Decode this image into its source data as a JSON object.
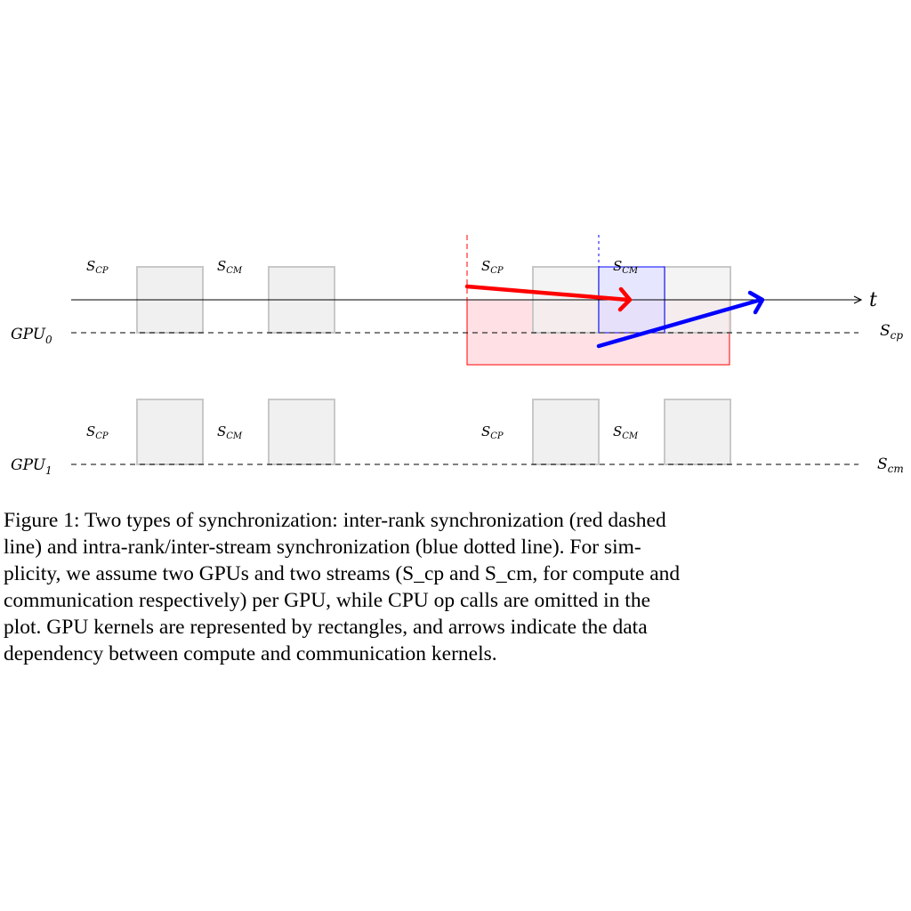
{
  "diagram": {
    "gpus": [
      {
        "base": "GPU",
        "sub": "0",
        "stream_right": {
          "base": "S",
          "sub": "cp"
        },
        "kernel_labels": [
          {
            "base": "S",
            "sub": "CP"
          },
          {
            "base": "S",
            "sub": "CM"
          },
          {
            "base": "S",
            "sub": "CP"
          },
          {
            "base": "S",
            "sub": "CM"
          }
        ]
      },
      {
        "base": "GPU",
        "sub": "1",
        "stream_right": {
          "base": "S",
          "sub": "cm"
        },
        "kernel_labels": [
          {
            "base": "S",
            "sub": "CP"
          },
          {
            "base": "S",
            "sub": "CM"
          },
          {
            "base": "S",
            "sub": "CP"
          },
          {
            "base": "S",
            "sub": "CM"
          }
        ]
      }
    ],
    "time_axis_label": "t",
    "colors": {
      "red": "#ff0000",
      "blue": "#0000ff",
      "red_fill": "#ffe0e4",
      "blue_fill": "#e0e0ff",
      "kernel_fill": "#f0f0f0",
      "kernel_stroke": "#c8c8c8"
    }
  },
  "caption": {
    "lines": [
      "Figure 1: Two types of synchronization: inter-rank synchronization (red dashed",
      "line) and intra-rank/inter-stream synchronization (blue dotted line). For sim-",
      "plicity, we assume two GPUs and two streams (S_cp and S_cm, for compute and",
      "communication respectively) per GPU, while CPU op calls are omitted in the",
      "plot. GPU kernels are represented by rectangles, and arrows indicate the data",
      "dependency between compute and communication kernels."
    ]
  }
}
